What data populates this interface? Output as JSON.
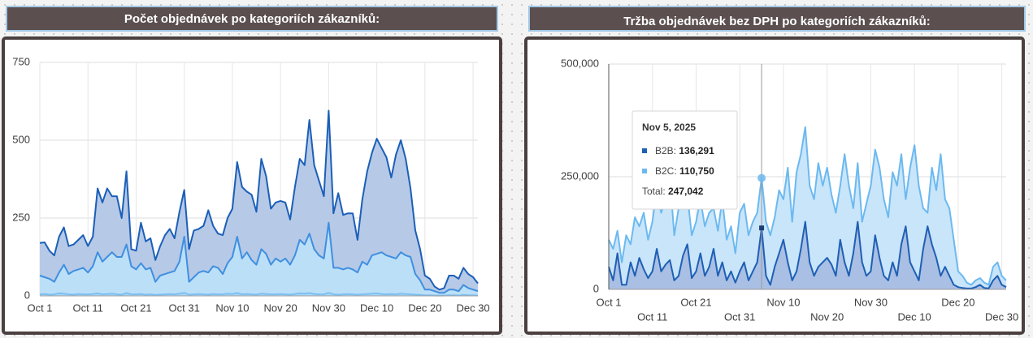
{
  "chart_data": [
    {
      "type": "area",
      "stacked": true,
      "title": "Počet objednávek po kategoriích zákazníků:",
      "categories": [
        "Oct 1",
        null,
        null,
        null,
        null,
        null,
        null,
        null,
        null,
        null,
        "Oct 11",
        null,
        null,
        null,
        null,
        null,
        null,
        null,
        null,
        null,
        "Oct 21",
        null,
        null,
        null,
        null,
        null,
        null,
        null,
        null,
        null,
        "Oct 31",
        null,
        null,
        null,
        null,
        null,
        null,
        null,
        null,
        null,
        "Nov 10",
        null,
        null,
        null,
        null,
        null,
        null,
        null,
        null,
        null,
        "Nov 20",
        null,
        null,
        null,
        null,
        null,
        null,
        null,
        null,
        null,
        "Nov 30",
        null,
        null,
        null,
        null,
        null,
        null,
        null,
        null,
        null,
        "Dec 10",
        null,
        null,
        null,
        null,
        null,
        null,
        null,
        null,
        null,
        "Dec 20",
        null,
        null,
        null,
        null,
        null,
        null,
        null,
        null,
        null,
        "Dec 30",
        null
      ],
      "series": [
        {
          "color": "#7cc0f2",
          "fill": "#a9d6f7",
          "values": [
            5,
            6,
            4,
            5,
            8,
            7,
            5,
            4,
            6,
            5,
            5,
            6,
            8,
            5,
            6,
            7,
            5,
            4,
            9,
            5,
            5,
            6,
            4,
            5,
            3,
            4,
            5,
            6,
            5,
            7,
            10,
            4,
            5,
            6,
            5,
            4,
            6,
            5,
            5,
            7,
            6,
            9,
            5,
            6,
            5,
            4,
            7,
            6,
            5,
            5,
            6,
            5,
            4,
            6,
            8,
            7,
            9,
            6,
            5,
            5,
            10,
            5,
            4,
            5,
            6,
            5,
            4,
            5,
            6,
            7,
            8,
            6,
            5,
            6,
            5,
            7,
            6,
            5,
            4,
            3,
            2,
            2,
            1,
            1,
            1,
            2,
            2,
            1,
            3,
            2,
            2,
            1
          ]
        },
        {
          "color": "#3f8fe0",
          "fill": "#bcdff8",
          "values": [
            60,
            54,
            51,
            40,
            67,
            93,
            65,
            76,
            79,
            85,
            70,
            89,
            132,
            105,
            119,
            133,
            120,
            121,
            156,
            90,
            80,
            99,
            81,
            85,
            42,
            61,
            65,
            69,
            75,
            103,
            180,
            41,
            55,
            69,
            75,
            71,
            89,
            85,
            65,
            98,
            119,
            181,
            115,
            134,
            110,
            96,
            143,
            129,
            95,
            115,
            104,
            115,
            96,
            124,
            172,
            158,
            191,
            144,
            125,
            115,
            225,
            85,
            86,
            80,
            84,
            80,
            71,
            105,
            94,
            123,
            127,
            134,
            125,
            119,
            115,
            133,
            124,
            120,
            66,
            47,
            18,
            18,
            14,
            9,
            9,
            18,
            18,
            14,
            32,
            23,
            18,
            14
          ]
        },
        {
          "color": "#1b5fb8",
          "fill": "#b6c9e6",
          "values": [
            105,
            112,
            90,
            85,
            115,
            120,
            90,
            85,
            95,
            105,
            85,
            95,
            205,
            190,
            220,
            180,
            195,
            125,
            235,
            55,
            60,
            130,
            90,
            95,
            70,
            95,
            125,
            140,
            105,
            160,
            150,
            105,
            150,
            140,
            145,
            200,
            130,
            110,
            125,
            145,
            155,
            240,
            230,
            195,
            210,
            170,
            290,
            250,
            180,
            180,
            195,
            180,
            145,
            220,
            260,
            255,
            365,
            270,
            240,
            200,
            360,
            175,
            240,
            175,
            175,
            180,
            105,
            200,
            300,
            330,
            370,
            335,
            315,
            255,
            335,
            360,
            310,
            220,
            140,
            100,
            45,
            35,
            15,
            10,
            15,
            45,
            45,
            40,
            55,
            45,
            40,
            25
          ]
        }
      ],
      "ylim": [
        0,
        750
      ],
      "yticks": [
        0,
        250,
        500,
        750
      ],
      "grid": true
    },
    {
      "type": "area",
      "stacked": true,
      "title": "Tržba objednávek bez DPH po kategoriích zákazníků:",
      "categories": [
        "Oct 1",
        null,
        null,
        null,
        null,
        null,
        null,
        null,
        null,
        null,
        "Oct 11",
        null,
        null,
        null,
        null,
        null,
        null,
        null,
        null,
        null,
        "Oct 21",
        null,
        null,
        null,
        null,
        null,
        null,
        null,
        null,
        null,
        "Oct 31",
        null,
        null,
        null,
        null,
        null,
        null,
        null,
        null,
        null,
        "Nov 10",
        null,
        null,
        null,
        null,
        null,
        null,
        null,
        null,
        null,
        "Nov 20",
        null,
        null,
        null,
        null,
        null,
        null,
        null,
        null,
        null,
        "Nov 30",
        null,
        null,
        null,
        null,
        null,
        null,
        null,
        null,
        null,
        "Dec 10",
        null,
        null,
        null,
        null,
        null,
        null,
        null,
        null,
        null,
        "Dec 20",
        null,
        null,
        null,
        null,
        null,
        null,
        null,
        null,
        null,
        "Dec 30",
        null
      ],
      "series": [
        {
          "color": "#1f5fb5",
          "fill": "#a9bfe3",
          "values": [
            50000,
            20000,
            80000,
            10000,
            10000,
            60000,
            30000,
            70000,
            45000,
            25000,
            40000,
            90000,
            40000,
            55000,
            65000,
            20000,
            30000,
            75000,
            100000,
            25000,
            40000,
            80000,
            30000,
            50000,
            90000,
            30000,
            60000,
            20000,
            40000,
            15000,
            40000,
            60000,
            20000,
            40000,
            60000,
            136291,
            30000,
            10000,
            50000,
            80000,
            110000,
            60000,
            20000,
            40000,
            90000,
            150000,
            60000,
            30000,
            50000,
            60000,
            70000,
            55000,
            30000,
            110000,
            60000,
            30000,
            80000,
            150000,
            60000,
            30000,
            40000,
            120000,
            70000,
            30000,
            20000,
            60000,
            30000,
            100000,
            140000,
            60000,
            40000,
            20000,
            90000,
            140000,
            100000,
            70000,
            30000,
            50000,
            30000,
            10000,
            5000,
            3000,
            2000,
            2000,
            5000,
            10000,
            3000,
            2000,
            20000,
            30000,
            10000,
            5000
          ]
        },
        {
          "color": "#6cb9f0",
          "fill": "#c9e5fa",
          "values": [
            60000,
            70000,
            50000,
            50000,
            110000,
            40000,
            130000,
            70000,
            125000,
            85000,
            110000,
            130000,
            130000,
            145000,
            185000,
            100000,
            150000,
            165000,
            110000,
            95000,
            110000,
            120000,
            110000,
            120000,
            90000,
            100000,
            140000,
            90000,
            100000,
            65000,
            130000,
            130000,
            100000,
            110000,
            110000,
            110750,
            120000,
            110000,
            110000,
            140000,
            90000,
            210000,
            130000,
            220000,
            210000,
            210000,
            170000,
            170000,
            230000,
            170000,
            200000,
            155000,
            140000,
            120000,
            240000,
            200000,
            100000,
            130000,
            90000,
            160000,
            190000,
            190000,
            200000,
            170000,
            140000,
            200000,
            200000,
            200000,
            60000,
            210000,
            280000,
            210000,
            90000,
            30000,
            170000,
            150000,
            270000,
            150000,
            150000,
            100000,
            35000,
            27000,
            13000,
            8000,
            15000,
            15000,
            12000,
            8000,
            30000,
            30000,
            20000,
            15000
          ]
        }
      ],
      "ylim": [
        0,
        500000
      ],
      "yticks": [
        0,
        {
          "value": 250000,
          "label": "250,000"
        },
        {
          "value": 500000,
          "label": "500,000"
        }
      ],
      "grid": true,
      "stagger_labels": true,
      "tooltip": {
        "title": "Nov 5, 2025",
        "rows": [
          {
            "label": "B2B:",
            "value": "136,291"
          },
          {
            "label": "B2C:",
            "value": "110,750"
          },
          {
            "label": "Total:",
            "value": "247,042"
          }
        ]
      }
    }
  ]
}
